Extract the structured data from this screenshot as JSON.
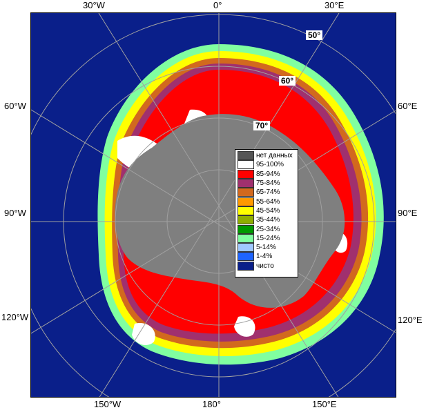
{
  "map": {
    "lon_labels": {
      "top_w30": "30°W",
      "top_0": "0°",
      "top_e30": "30°E",
      "left_w60": "60°W",
      "left_w90": "90°W",
      "left_w120": "120°W",
      "right_e60": "60°E",
      "right_e90": "90°E",
      "right_e120": "120°E",
      "bottom_w150": "150°W",
      "bottom_180": "180°",
      "bottom_e150": "150°E"
    },
    "lat_labels": {
      "lat50": "50°",
      "lat60": "60°",
      "lat70": "70°"
    },
    "colors": {
      "ocean": "#0a1f8a",
      "land": "#7f7f7f",
      "border": "#000000"
    }
  },
  "legend": {
    "items": [
      {
        "label": "нет данных",
        "color": "#555555"
      },
      {
        "label": "95-100%",
        "color": "#ffffff"
      },
      {
        "label": "85-94%",
        "color": "#ff0000"
      },
      {
        "label": "75-84%",
        "color": "#a0306e"
      },
      {
        "label": "65-74%",
        "color": "#d2691e"
      },
      {
        "label": "55-64%",
        "color": "#ff9900"
      },
      {
        "label": "45-54%",
        "color": "#ffff00"
      },
      {
        "label": "35-44%",
        "color": "#8fae00"
      },
      {
        "label": "25-34%",
        "color": "#009a00"
      },
      {
        "label": "15-24%",
        "color": "#80ffa0"
      },
      {
        "label": "5-14%",
        "color": "#a0c8ff"
      },
      {
        "label": "1-4%",
        "color": "#1e64ff"
      },
      {
        "label": "чисто",
        "color": "#0a1f8a"
      }
    ]
  }
}
